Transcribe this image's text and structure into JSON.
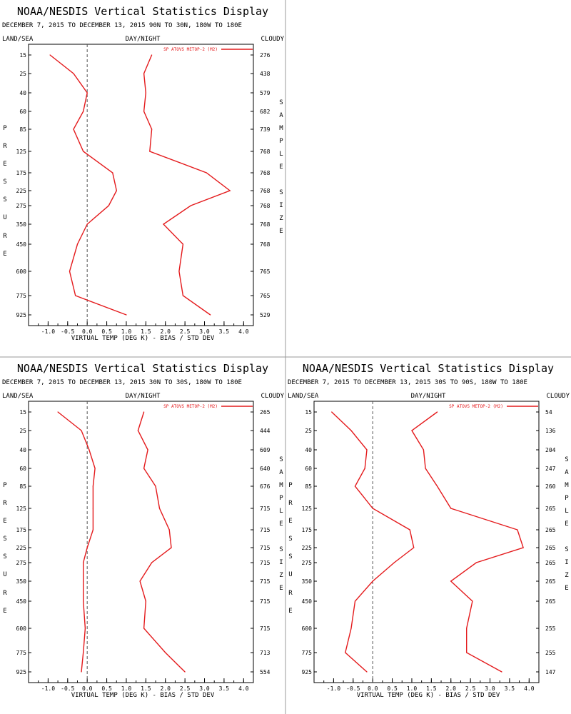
{
  "display_title": "NOAA/NESDIS Vertical Statistics Display",
  "labels": {
    "land_sea": "LAND/SEA",
    "day_night": "DAY/NIGHT",
    "cloudy": "CLOUDY",
    "left_axis_letters": [
      "P",
      "R",
      "E",
      "S",
      "S",
      "U",
      "R",
      "E"
    ],
    "right_axis_letters": [
      "S",
      "A",
      "M",
      "P",
      "L",
      "E",
      "",
      "S",
      "I",
      "Z",
      "E"
    ]
  },
  "chart_data": [
    {
      "type": "line",
      "subtitle": "DECEMBER 7, 2015 TO DECEMBER 13, 2015 90N TO 30N, 180W TO 180E",
      "xlabel": "VIRTUAL TEMP (DEG K) - BIAS / STD DEV",
      "ylabel": "PRESSURE",
      "y2label": "SAMPLE SIZE",
      "legend": "SP ATOVS METOP-2 (M2)",
      "legend_placement": "top-right",
      "series_color": "#e41a1c",
      "xlim": [
        -1.5,
        4.25
      ],
      "x_ticks": [
        "-1.0",
        "-0.5",
        "0.0",
        "0.5",
        "1.0",
        "1.5",
        "2.0",
        "2.5",
        "3.0",
        "3.5",
        "4.0"
      ],
      "x_tick_values": [
        -1.0,
        -0.5,
        0.0,
        0.5,
        1.0,
        1.5,
        2.0,
        2.5,
        3.0,
        3.5,
        4.0
      ],
      "pressure_levels": [
        15,
        25,
        40,
        60,
        85,
        125,
        175,
        225,
        275,
        350,
        450,
        600,
        775,
        925
      ],
      "sample_size": [
        276,
        438,
        579,
        682,
        739,
        768,
        768,
        768,
        768,
        768,
        768,
        765,
        765,
        529
      ],
      "series": [
        {
          "values": [
            -0.95,
            -0.35,
            0.0,
            -0.1,
            -0.35,
            -0.1,
            0.65,
            0.75,
            0.55,
            0.0,
            -0.25,
            -0.45,
            -0.3,
            1.0
          ]
        },
        {
          "values": [
            1.65,
            1.45,
            1.5,
            1.45,
            1.65,
            1.6,
            3.05,
            3.65,
            2.65,
            1.95,
            2.45,
            2.35,
            2.45,
            3.15
          ]
        }
      ]
    },
    {
      "type": "line",
      "subtitle": "DECEMBER 7, 2015 TO DECEMBER 13, 2015 30N TO 30S, 180W TO 180E",
      "xlabel": "VIRTUAL TEMP (DEG K) - BIAS / STD DEV",
      "ylabel": "PRESSURE",
      "y2label": "SAMPLE SIZE",
      "legend": "SP ATOVS METOP-2 (M2)",
      "legend_placement": "top-right",
      "series_color": "#e41a1c",
      "xlim": [
        -1.5,
        4.25
      ],
      "x_ticks": [
        "-1.0",
        "-0.5",
        "0.0",
        "0.5",
        "1.0",
        "1.5",
        "2.0",
        "2.5",
        "3.0",
        "3.5",
        "4.0"
      ],
      "x_tick_values": [
        -1.0,
        -0.5,
        0.0,
        0.5,
        1.0,
        1.5,
        2.0,
        2.5,
        3.0,
        3.5,
        4.0
      ],
      "pressure_levels": [
        15,
        25,
        40,
        60,
        85,
        125,
        175,
        225,
        275,
        350,
        450,
        600,
        775,
        925
      ],
      "sample_size": [
        265,
        444,
        609,
        640,
        676,
        715,
        715,
        715,
        715,
        715,
        715,
        715,
        713,
        554
      ],
      "series": [
        {
          "values": [
            -0.75,
            -0.15,
            0.05,
            0.2,
            0.15,
            0.15,
            0.15,
            0.0,
            -0.1,
            -0.1,
            -0.1,
            -0.05,
            -0.1,
            -0.15
          ]
        },
        {
          "values": [
            1.45,
            1.3,
            1.55,
            1.45,
            1.75,
            1.85,
            2.1,
            2.15,
            1.65,
            1.35,
            1.5,
            1.45,
            2.0,
            2.5
          ]
        }
      ]
    },
    {
      "type": "line",
      "subtitle": "DECEMBER 7, 2015 TO DECEMBER 13, 2015 30S TO 90S, 180W TO 180E",
      "xlabel": "VIRTUAL TEMP (DEG K) - BIAS / STD DEV",
      "ylabel": "PRESSURE",
      "y2label": "SAMPLE SIZE",
      "legend": "SP ATOVS METOP-2 (M2)",
      "legend_placement": "top-right",
      "series_color": "#e41a1c",
      "xlim": [
        -1.5,
        4.25
      ],
      "x_ticks": [
        "-1.0",
        "-0.5",
        "0.0",
        "0.5",
        "1.0",
        "1.5",
        "2.0",
        "2.5",
        "3.0",
        "3.5",
        "4.0"
      ],
      "x_tick_values": [
        -1.0,
        -0.5,
        0.0,
        0.5,
        1.0,
        1.5,
        2.0,
        2.5,
        3.0,
        3.5,
        4.0
      ],
      "pressure_levels": [
        15,
        25,
        40,
        60,
        85,
        125,
        175,
        225,
        275,
        350,
        450,
        600,
        775,
        925
      ],
      "sample_size": [
        54,
        136,
        204,
        247,
        260,
        265,
        265,
        265,
        265,
        265,
        265,
        255,
        255,
        147
      ],
      "series": [
        {
          "values": [
            -1.05,
            -0.55,
            -0.15,
            -0.2,
            -0.45,
            0.0,
            0.95,
            1.05,
            0.55,
            0.0,
            -0.45,
            -0.55,
            -0.7,
            -0.15
          ]
        },
        {
          "values": [
            1.65,
            1.0,
            1.3,
            1.35,
            1.65,
            2.0,
            3.7,
            3.85,
            2.65,
            2.0,
            2.55,
            2.4,
            2.4,
            3.3
          ]
        }
      ]
    }
  ]
}
